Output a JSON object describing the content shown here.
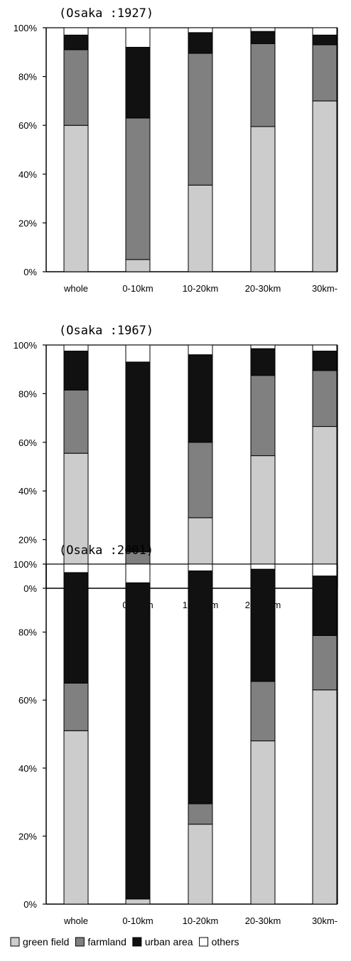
{
  "chart_data": [
    {
      "type": "bar",
      "stacked": true,
      "title": "(Osaka :1927)",
      "categories": [
        "whole",
        "0-10km",
        "10-20km",
        "20-30km",
        "30km-"
      ],
      "ylim": [
        0,
        100
      ],
      "yticks": [
        "0%",
        "20%",
        "40%",
        "60%",
        "80%",
        "100%"
      ],
      "series": [
        {
          "values": [
            60,
            5,
            35.5,
            59.5,
            70
          ]
        },
        {
          "values": [
            31,
            58,
            54,
            34,
            23
          ]
        },
        {
          "values": [
            6,
            29,
            8.5,
            5,
            4
          ]
        },
        {
          "values": [
            3,
            8,
            2,
            1.5,
            3
          ]
        }
      ]
    },
    {
      "type": "bar",
      "stacked": true,
      "title": "(Osaka :1967)",
      "categories": [
        "whole",
        "0-10km",
        "10-20km",
        "20-30km",
        "30km-"
      ],
      "ylim": [
        0,
        100
      ],
      "yticks": [
        "0%",
        "20%",
        "40%",
        "60%",
        "80%",
        "100%"
      ],
      "series": [
        {
          "values": [
            55.5,
            2,
            29,
            54.5,
            66.5
          ]
        },
        {
          "values": [
            26,
            13,
            31,
            33,
            23
          ]
        },
        {
          "values": [
            16,
            78,
            36,
            11,
            8
          ]
        },
        {
          "values": [
            2.5,
            7,
            4,
            1.5,
            2.5
          ]
        }
      ]
    },
    {
      "type": "bar",
      "stacked": true,
      "title": "(Osaka :2001)",
      "categories": [
        "whole",
        "0-10km",
        "10-20km",
        "20-30km",
        "30km-"
      ],
      "ylim": [
        0,
        100
      ],
      "yticks": [
        "0%",
        "20%",
        "40%",
        "60%",
        "80%",
        "100%"
      ],
      "series": [
        {
          "values": [
            51,
            1.5,
            23.5,
            48,
            63
          ]
        },
        {
          "values": [
            14,
            0,
            6,
            17.5,
            16
          ]
        },
        {
          "values": [
            32.5,
            93,
            68.5,
            33,
            17.5
          ]
        },
        {
          "values": [
            2.5,
            5.5,
            2,
            1.5,
            3.5
          ]
        }
      ]
    }
  ],
  "legend": {
    "items": [
      {
        "label": "green field",
        "color": "#cccccc"
      },
      {
        "label": "farmland",
        "color": "#808080"
      },
      {
        "label": "urban area",
        "color": "#111111"
      },
      {
        "label": "others",
        "color": "#ffffff"
      }
    ]
  }
}
